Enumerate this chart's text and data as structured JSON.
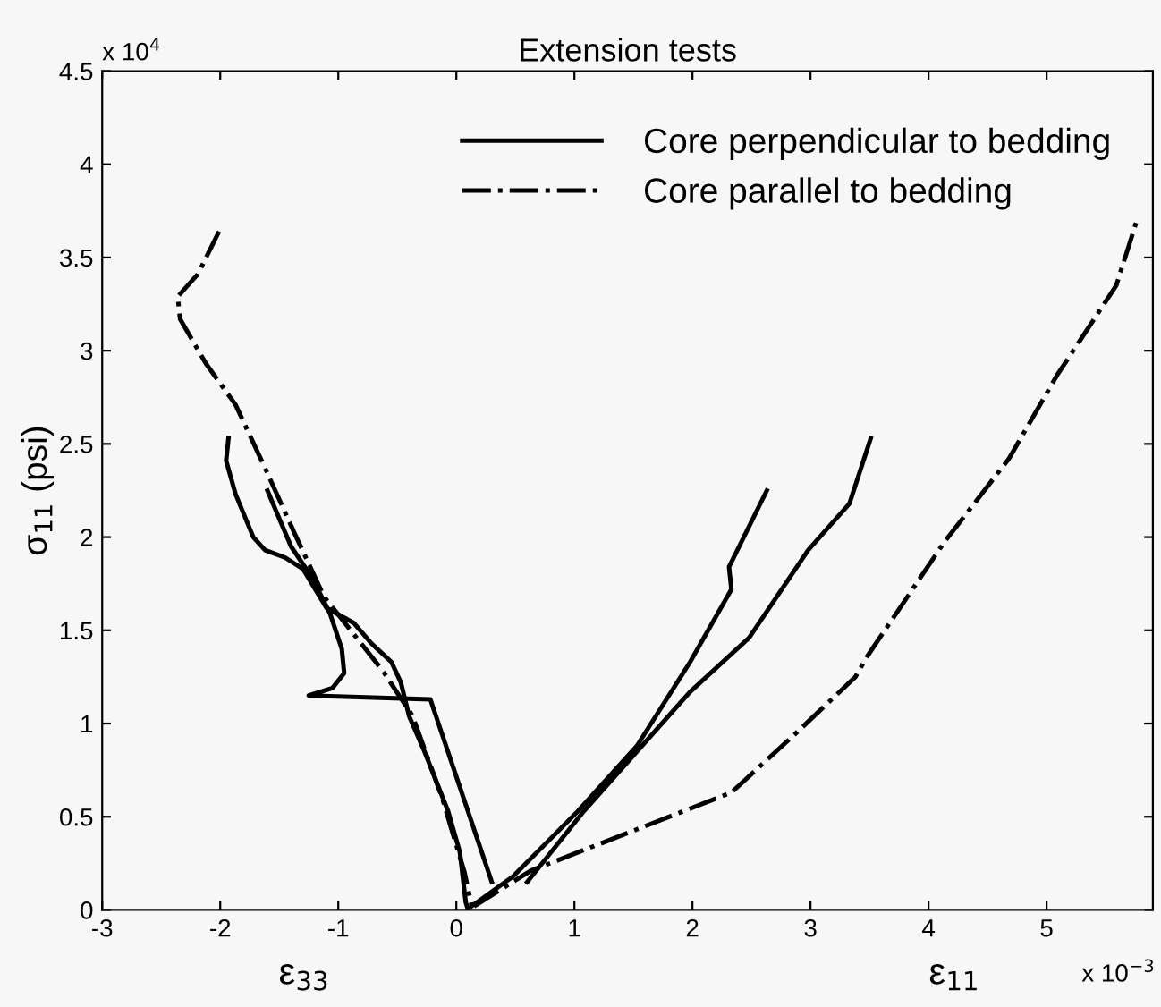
{
  "chart_data": {
    "type": "line",
    "title": "Extension tests",
    "ylabel": "σ$_{11}$ (psi)",
    "annotations": [
      "ε$_{33}$",
      "ε$_{11}$",
      "x 10$^{4}$",
      "x 10$^{−3}$"
    ],
    "xlim": [
      -3,
      5.9
    ],
    "ylim": [
      0,
      4.5
    ],
    "xticks": [
      -3,
      -2,
      -1,
      0,
      1,
      2,
      3,
      4,
      5
    ],
    "yticks": [
      0,
      0.5,
      1,
      1.5,
      2,
      2.5,
      3,
      3.5,
      4,
      4.5
    ],
    "grid": false,
    "legend": "top right",
    "marker": "none",
    "series": [
      {
        "name": "Core perpendicular to bedding",
        "color": "#000000",
        "line_style": "solid",
        "x": [
          -1.93,
          -1.95,
          -1.87,
          -1.72,
          -1.62,
          -1.45,
          -1.3,
          -1.1,
          -0.87,
          -0.72,
          -0.55,
          -0.47,
          -0.4,
          -0.27,
          -0.07,
          0.03,
          0.08,
          0.1
        ],
        "values": [
          2.53,
          2.41,
          2.23,
          2.0,
          1.93,
          1.89,
          1.83,
          1.62,
          1.54,
          1.43,
          1.33,
          1.22,
          1.04,
          0.85,
          0.53,
          0.31,
          0.04,
          0.0
        ]
      },
      {
        "color": "#000000",
        "line_style": "solid",
        "x": [
          -1.6,
          -1.4,
          -1.22,
          -1.07,
          -0.97,
          -0.95,
          -1.05,
          -1.25,
          -0.22,
          0.3
        ],
        "values": [
          2.25,
          1.95,
          1.78,
          1.59,
          1.4,
          1.27,
          1.19,
          1.15,
          1.13,
          0.15
        ]
      },
      {
        "color": "#000000",
        "line_style": "solid",
        "x": [
          0.13,
          0.48,
          1.03,
          1.53,
          1.98,
          2.33,
          2.31,
          2.63
        ],
        "values": [
          0.02,
          0.18,
          0.53,
          0.88,
          1.33,
          1.72,
          1.84,
          2.25
        ]
      },
      {
        "color": "#000000",
        "line_style": "solid",
        "x": [
          0.6,
          1.08,
          1.53,
          1.98,
          2.48,
          2.98,
          3.33,
          3.51
        ],
        "values": [
          0.15,
          0.53,
          0.85,
          1.17,
          1.46,
          1.93,
          2.18,
          2.53
        ]
      },
      {
        "name": "Core parallel to bedding",
        "color": "#000000",
        "line_style": "dashdot",
        "x": [
          -2.01,
          -2.19,
          -2.36,
          -2.34,
          -2.12,
          -1.87,
          -1.62,
          -1.37,
          -1.12,
          -0.62,
          -0.37,
          -0.12,
          0.07,
          0.13
        ],
        "values": [
          3.64,
          3.41,
          3.29,
          3.17,
          2.93,
          2.71,
          2.37,
          2.02,
          1.68,
          1.28,
          1.04,
          0.6,
          0.2,
          0.02
        ]
      },
      {
        "color": "#000000",
        "line_style": "dashdot",
        "x": [
          0.15,
          0.63,
          2.33,
          2.88,
          3.38,
          3.48,
          4.13,
          4.68,
          5.09,
          5.59,
          5.76
        ],
        "values": [
          0.02,
          0.21,
          0.63,
          0.95,
          1.25,
          1.36,
          1.97,
          2.42,
          2.87,
          3.35,
          3.69
        ]
      }
    ]
  }
}
